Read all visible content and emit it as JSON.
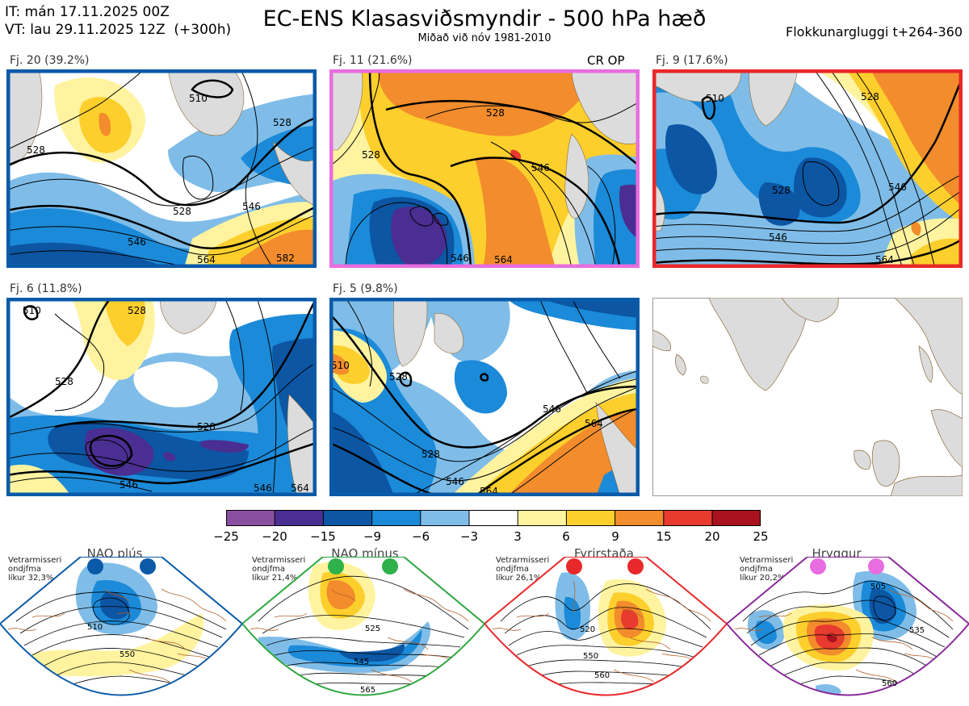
{
  "header": {
    "it_line": "IT: mán 17.11.2025 00Z",
    "vt_line": "VT: lau 29.11.2025 12Z  (+300h)",
    "title": "EC-ENS Klasasviðsmyndir - 500 hPa hæð",
    "subtitle": "Miðað við nóv 1981-2010",
    "window": "Flokkunargluggi t+264-360"
  },
  "clusters": [
    {
      "label": "Fj. 20 (39.2%)",
      "frame_color": "#0a5aa8",
      "contour_labels": [
        "510",
        "528",
        "528",
        "528",
        "546",
        "546",
        "564",
        "582"
      ]
    },
    {
      "label": "Fj. 11 (21.6%)",
      "frame_color": "#e86de0",
      "extra": "CR OP",
      "contour_labels": [
        "528",
        "528",
        "546",
        "546",
        "564"
      ]
    },
    {
      "label": "Fj. 9 (17.6%)",
      "frame_color": "#e8282a",
      "contour_labels": [
        "510",
        "528",
        "528",
        "546",
        "546",
        "564"
      ]
    },
    {
      "label": "Fj. 6 (11.8%)",
      "frame_color": "#0a5aa8",
      "contour_labels": [
        "510",
        "528",
        "528",
        "528",
        "546",
        "546",
        "564"
      ]
    },
    {
      "label": "Fj. 5 (9.8%)",
      "frame_color": "#0a5aa8",
      "contour_labels": [
        "510",
        "528",
        "528",
        "546",
        "546",
        "564",
        "564"
      ]
    }
  ],
  "colorbar": {
    "ticks": [
      "−25",
      "−20",
      "−15",
      "−9",
      "−6",
      "−3",
      "3",
      "6",
      "9",
      "15",
      "20",
      "25"
    ],
    "colors": [
      "#8a4fa0",
      "#4a2e92",
      "#0c56a4",
      "#1b8ad8",
      "#7fbde8",
      "#ffffff",
      "#fff3a0",
      "#fdcf2c",
      "#f28c2c",
      "#e83a2e",
      "#a9121f"
    ]
  },
  "regimes": [
    {
      "name": "NAO plús",
      "season": "Vetrarmisseri",
      "freq_label": "ondjfma",
      "prob": "líkur 32,3%",
      "color": "#0a5aa8",
      "dot_color": "#0a5aa8",
      "contour_labels": [
        "510",
        "550"
      ]
    },
    {
      "name": "NAO mínus",
      "season": "Vetrarmisseri",
      "freq_label": "ondjfma",
      "prob": "líkur 21,4%",
      "color": "#2ea83e",
      "dot_color": "#2eb04a",
      "contour_labels": [
        "525",
        "545",
        "565"
      ]
    },
    {
      "name": "Fyrirstaða",
      "season": "Vetrarmisseri",
      "freq_label": "ondjfma",
      "prob": "líkur 26,1%",
      "color": "#e8282a",
      "dot_color": "#e8282a",
      "contour_labels": [
        "520",
        "550",
        "560"
      ]
    },
    {
      "name": "Hryggur",
      "season": "Vetrarmisseri",
      "freq_label": "ondjfma",
      "prob": "líkur 20,2%",
      "color": "#8a2a9a",
      "dot_color": "#e86de0",
      "contour_labels": [
        "505",
        "535",
        "560"
      ]
    }
  ]
}
